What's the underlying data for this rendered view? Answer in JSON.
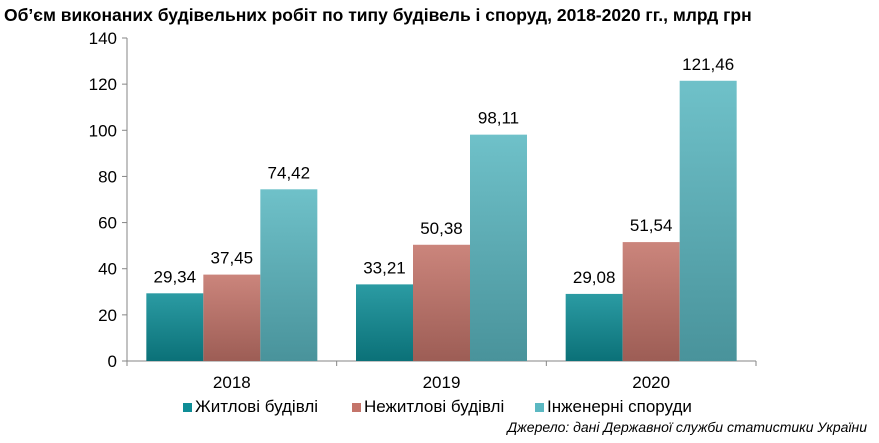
{
  "chart_data": {
    "type": "bar",
    "title": "Об’єм виконаних будівельних робіт по типу будівель і споруд,  2018-2020 гг., млрд грн",
    "categories": [
      "2018",
      "2019",
      "2020"
    ],
    "series": [
      {
        "name": "Житлові будівлі",
        "values": [
          29.34,
          33.21,
          29.08
        ],
        "labels": [
          "29,34",
          "33,21",
          "29,08"
        ],
        "color": "#0E8D96"
      },
      {
        "name": "Нежитлові будівлі",
        "values": [
          37.45,
          50.38,
          51.54
        ],
        "labels": [
          "37,45",
          "50,38",
          "51,54"
        ],
        "color": "#C4746A"
      },
      {
        "name": "Інженерні споруди",
        "values": [
          74.42,
          98.11,
          121.46
        ],
        "labels": [
          "74,42",
          "98,11",
          "121,46"
        ],
        "color": "#5BB8C2"
      }
    ],
    "ylim": [
      0,
      140
    ],
    "yticks": [
      "0",
      "20",
      "40",
      "60",
      "80",
      "100",
      "120",
      "140"
    ],
    "xlabel": "",
    "ylabel": "",
    "grid": false,
    "legend": "bottom"
  },
  "source_note": "Джерело: дані Державної служби статистики України"
}
